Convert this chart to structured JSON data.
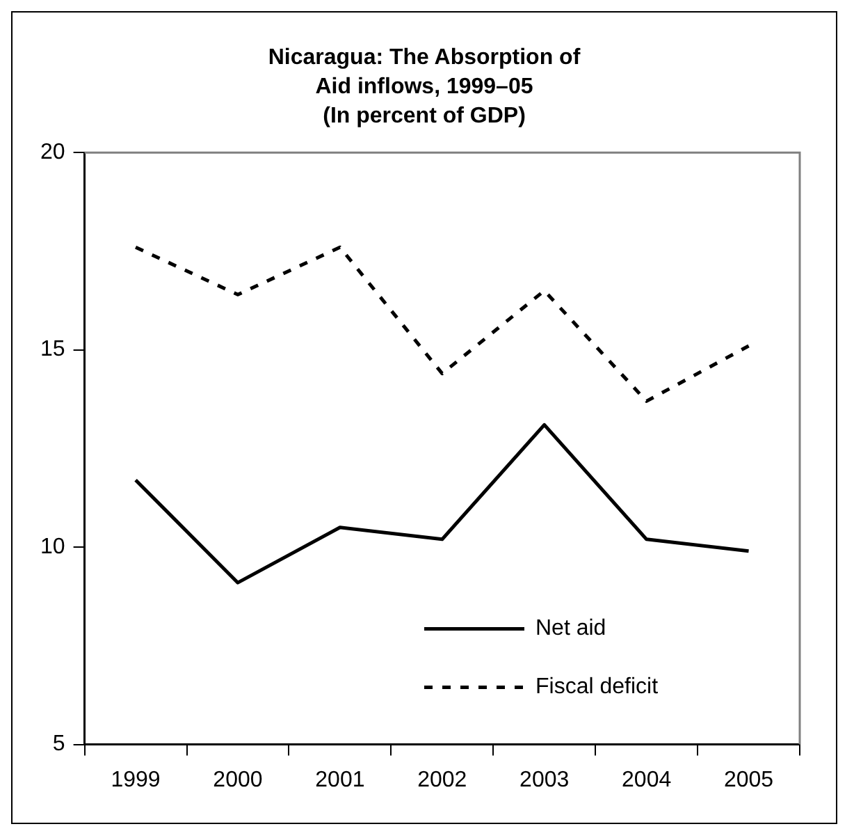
{
  "chart_data": {
    "type": "line",
    "title": "Nicaragua: The Absorption of Aid inflows, 1999–05",
    "subtitle": "(In percent of GDP)",
    "categories": [
      "1999",
      "2000",
      "2001",
      "2002",
      "2003",
      "2004",
      "2005"
    ],
    "series": [
      {
        "name": "Net aid",
        "color": "#000000",
        "line_style": "solid",
        "values": [
          11.7,
          9.1,
          10.5,
          10.2,
          13.1,
          10.2,
          9.9
        ]
      },
      {
        "name": "Fiscal deficit",
        "color": "#000000",
        "line_style": "dashed",
        "values": [
          17.6,
          16.4,
          17.6,
          14.4,
          16.5,
          13.7,
          15.1
        ]
      }
    ],
    "ylim": [
      5,
      20
    ],
    "yticks": [
      5,
      10,
      15,
      20
    ],
    "grid": false,
    "legend": "bottom right",
    "marker": "none"
  }
}
